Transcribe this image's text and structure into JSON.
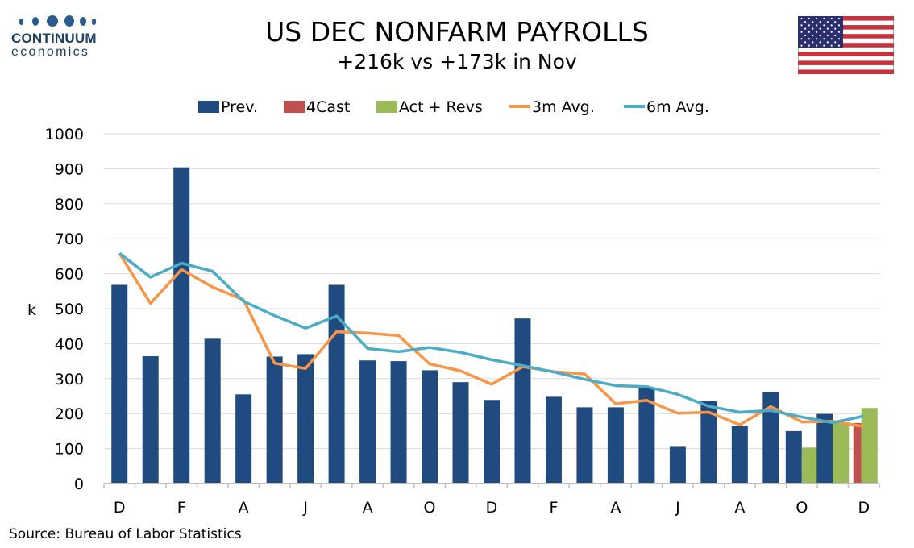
{
  "logo": {
    "name": "CONTINUUM",
    "sub": "economics"
  },
  "header": {
    "title": "US DEC NONFARM PAYROLLS",
    "subtitle": "+216k vs +173k in Nov"
  },
  "source": "Source: Bureau of Labor Statistics",
  "flag_icon": "us-flag-icon",
  "colors": {
    "prev": "#1f4b80",
    "forecast": "#c0504d",
    "actual": "#9bbb59",
    "avg3m": "#f79646",
    "avg6m": "#4bacc6",
    "grid": "#d9d9d9",
    "axis": "#bfbfbf"
  },
  "chart_data": {
    "type": "bar",
    "ylabel": "k",
    "ylim": [
      0,
      1000
    ],
    "yticks": [
      0,
      100,
      200,
      300,
      400,
      500,
      600,
      700,
      800,
      900,
      1000
    ],
    "grid": true,
    "legend_position": "top",
    "x_tick_labels": [
      "D",
      "F",
      "A",
      "J",
      "A",
      "O",
      "D",
      "F",
      "A",
      "J",
      "A",
      "O",
      "D"
    ],
    "x_tick_every": 2,
    "months_count": 25,
    "series": [
      {
        "name": "Prev.",
        "kind": "bar",
        "values": [
          568,
          364,
          904,
          414,
          255,
          363,
          370,
          568,
          352,
          350,
          324,
          290,
          239,
          472,
          248,
          218,
          218,
          272,
          105,
          236,
          165,
          261,
          150,
          199,
          null
        ]
      },
      {
        "name": "4Cast",
        "kind": "bar",
        "values": [
          null,
          null,
          null,
          null,
          null,
          null,
          null,
          null,
          null,
          null,
          null,
          null,
          null,
          null,
          null,
          null,
          null,
          null,
          null,
          null,
          null,
          null,
          null,
          null,
          173
        ]
      },
      {
        "name": "Act + Revs",
        "kind": "bar",
        "values": [
          null,
          null,
          null,
          null,
          null,
          null,
          null,
          null,
          null,
          null,
          null,
          null,
          null,
          null,
          null,
          null,
          null,
          null,
          null,
          null,
          null,
          null,
          103,
          173,
          216
        ]
      },
      {
        "name": "3m Avg.",
        "kind": "line",
        "values": [
          658,
          515,
          612,
          562,
          525,
          344,
          329,
          434,
          430,
          423,
          342,
          322,
          284,
          334,
          320,
          313,
          228,
          238,
          201,
          204,
          168,
          220,
          176,
          178,
          163
        ]
      },
      {
        "name": "6m Avg.",
        "kind": "line",
        "values": [
          658,
          590,
          630,
          607,
          521,
          480,
          444,
          479,
          386,
          377,
          389,
          375,
          354,
          337,
          319,
          298,
          280,
          277,
          255,
          221,
          204,
          209,
          190,
          174,
          193
        ]
      }
    ]
  }
}
